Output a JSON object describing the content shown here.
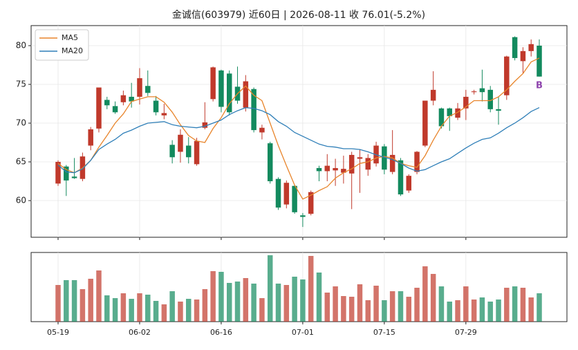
{
  "chart_data": {
    "type": "candlestick",
    "title": "金诚信(603979) 近60日  |  2026-08-11 收 76.01(-5.2%)",
    "categories": [
      "05-19",
      null,
      null,
      null,
      null,
      null,
      null,
      null,
      null,
      null,
      "06-02",
      null,
      null,
      null,
      null,
      null,
      null,
      null,
      null,
      null,
      "06-16",
      null,
      null,
      null,
      null,
      null,
      null,
      null,
      null,
      null,
      "07-01",
      null,
      null,
      null,
      null,
      null,
      null,
      null,
      null,
      null,
      "07-15",
      null,
      null,
      null,
      null,
      null,
      null,
      null,
      null,
      null,
      "07-29",
      null,
      null,
      null,
      null,
      null,
      null,
      null,
      null,
      null
    ],
    "open": [
      62.2,
      64.4,
      63.1,
      62.8,
      67.1,
      69.3,
      73.0,
      72.2,
      72.7,
      73.4,
      73.4,
      74.8,
      72.9,
      71.0,
      67.2,
      66.3,
      67.1,
      64.7,
      69.4,
      73.1,
      76.8,
      76.4,
      74.7,
      72.0,
      74.4,
      68.8,
      67.4,
      62.8,
      59.5,
      61.9,
      58.1,
      58.3,
      64.2,
      63.8,
      63.9,
      63.6,
      63.5,
      65.4,
      64.0,
      64.8,
      67.0,
      63.7,
      65.2,
      61.3,
      63.7,
      67.1,
      72.9,
      71.9,
      71.9,
      70.7,
      71.9,
      74.0,
      74.5,
      74.3,
      71.8,
      73.6,
      81.1,
      78.0,
      79.3,
      80.0
    ],
    "high": [
      65.2,
      64.6,
      65.5,
      66.2,
      69.5,
      74.6,
      73.4,
      72.8,
      74.2,
      75.2,
      77.1,
      76.8,
      73.5,
      72.5,
      67.8,
      69.2,
      68.2,
      68.1,
      72.7,
      77.3,
      76.9,
      76.8,
      77.3,
      76.2,
      74.6,
      69.8,
      67.6,
      63.0,
      62.6,
      62.0,
      58.4,
      61.3,
      64.5,
      66.0,
      65.4,
      65.8,
      66.3,
      66.6,
      66.0,
      67.6,
      67.3,
      69.1,
      65.5,
      63.4,
      66.4,
      72.9,
      76.7,
      72.0,
      72.0,
      72.6,
      74.3,
      74.3,
      76.9,
      74.8,
      73.4,
      78.7,
      81.2,
      79.8,
      80.8,
      80.8
    ],
    "low": [
      61.9,
      60.6,
      62.8,
      62.5,
      66.5,
      68.8,
      71.8,
      71.2,
      72.3,
      72.0,
      72.4,
      73.5,
      71.0,
      70.5,
      64.8,
      64.9,
      64.8,
      64.5,
      69.2,
      72.8,
      71.4,
      71.0,
      72.5,
      71.5,
      68.8,
      67.9,
      62.2,
      58.8,
      59.0,
      58.3,
      56.6,
      58.1,
      62.5,
      62.5,
      61.9,
      62.2,
      58.9,
      61.0,
      63.2,
      64.4,
      63.4,
      63.4,
      60.6,
      61.0,
      63.4,
      66.9,
      72.3,
      69.3,
      69.0,
      70.4,
      70.4,
      73.7,
      72.8,
      71.4,
      69.8,
      73.0,
      78.1,
      76.4,
      78.6,
      76.0
    ],
    "close": [
      65.0,
      62.6,
      62.9,
      65.7,
      69.2,
      74.6,
      72.3,
      71.4,
      73.6,
      72.8,
      75.8,
      73.9,
      71.4,
      71.3,
      65.6,
      68.5,
      65.6,
      67.7,
      70.1,
      77.2,
      72.1,
      71.4,
      72.9,
      75.4,
      69.1,
      69.4,
      62.5,
      59.1,
      62.3,
      58.5,
      57.9,
      61.1,
      63.8,
      64.5,
      64.2,
      64.1,
      65.9,
      65.6,
      65.5,
      67.1,
      64.0,
      65.9,
      60.8,
      63.2,
      66.3,
      72.9,
      74.3,
      69.6,
      70.9,
      71.9,
      73.4,
      74.1,
      74.0,
      71.8,
      71.6,
      78.6,
      78.4,
      79.3,
      80.2,
      76.01
    ],
    "up_color": "#c0392b",
    "down_color": "#138a5e",
    "series": [
      {
        "name": "MA5",
        "color": "#e8842a",
        "values": [
          64.8,
          64.0,
          63.6,
          64.2,
          65.2,
          66.9,
          68.4,
          70.0,
          71.2,
          72.8,
          73.1,
          73.4,
          73.4,
          72.7,
          71.4,
          69.8,
          68.4,
          67.7,
          67.5,
          69.3,
          70.7,
          72.5,
          73.8,
          74.8,
          73.6,
          72.9,
          70.0,
          67.1,
          64.5,
          62.0,
          60.2,
          60.7,
          61.3,
          61.8,
          62.9,
          63.6,
          64.1,
          64.8,
          65.0,
          65.5,
          65.7,
          65.5,
          64.8,
          64.5,
          64.3,
          65.8,
          67.8,
          69.6,
          70.9,
          71.4,
          72.1,
          72.9,
          72.9,
          72.9,
          73.4,
          74.3,
          75.4,
          76.4,
          77.9,
          78.4
        ]
      },
      {
        "name": "MA20",
        "color": "#2f7fb8",
        "values": [
          64.6,
          63.7,
          63.6,
          64.1,
          65.2,
          66.6,
          67.3,
          67.9,
          68.7,
          69.1,
          69.6,
          70.0,
          70.1,
          70.2,
          69.8,
          69.6,
          69.5,
          69.4,
          69.6,
          70.0,
          70.4,
          71.1,
          71.6,
          72.0,
          71.9,
          71.6,
          71.1,
          70.2,
          69.6,
          68.8,
          68.3,
          67.8,
          67.3,
          67.0,
          66.9,
          66.7,
          66.7,
          66.6,
          66.3,
          65.9,
          65.6,
          65.3,
          64.8,
          64.2,
          63.8,
          64.0,
          64.5,
          65.0,
          65.4,
          66.1,
          66.8,
          67.4,
          67.9,
          68.1,
          68.7,
          69.4,
          70.0,
          70.7,
          71.5,
          72.0
        ]
      }
    ],
    "ylim": [
      55.27,
      82.59
    ],
    "yticks": [
      60,
      65,
      70,
      75,
      80
    ],
    "grid": true,
    "legend": "upper left",
    "signal": {
      "label": "B",
      "index": 59,
      "color": "#8e44ad"
    },
    "volume": {
      "values": [
        53,
        60,
        60,
        47,
        62,
        74,
        38,
        34,
        41,
        33,
        41,
        39,
        30,
        25,
        44,
        29,
        33,
        32,
        47,
        73,
        72,
        56,
        58,
        63,
        55,
        34,
        96,
        55,
        53,
        65,
        61,
        95,
        71,
        42,
        51,
        37,
        36,
        54,
        31,
        52,
        31,
        44,
        44,
        36,
        49,
        80,
        69,
        51,
        29,
        31,
        51,
        32,
        35,
        29,
        32,
        49,
        51,
        49,
        35,
        41
      ],
      "ylim": [
        0,
        100
      ]
    }
  }
}
